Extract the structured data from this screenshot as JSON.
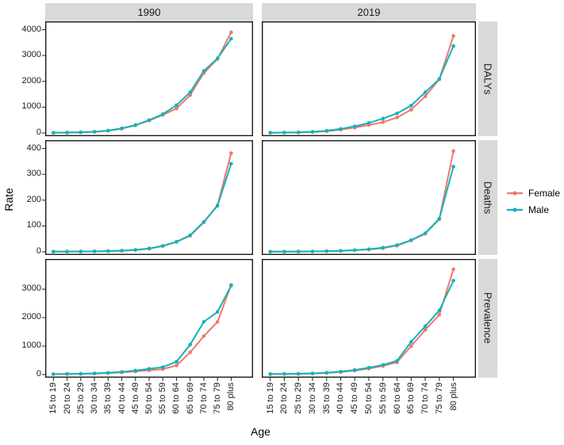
{
  "chart_data": {
    "type": "line",
    "title": "",
    "xlabel": "Age",
    "ylabel": "Rate",
    "facet_columns": [
      "1990",
      "2019"
    ],
    "facet_rows": [
      "DALYs",
      "Deaths",
      "Prevalence"
    ],
    "categories": [
      "15 to 19",
      "20 to 24",
      "25 to 29",
      "30 to 34",
      "35 to 39",
      "40 to 44",
      "45 to 49",
      "50 to 54",
      "55 to 59",
      "60 to 64",
      "65 to 69",
      "70 to 74",
      "75 to 79",
      "80 plus"
    ],
    "legend": {
      "position": "right",
      "entries": [
        {
          "name": "Female",
          "color": "#F0776D"
        },
        {
          "name": "Male",
          "color": "#13B3B9"
        }
      ]
    },
    "style": {
      "strip_background": "#D9D9D9",
      "panel_border": "#1A1A1A",
      "tick_color": "#333333",
      "panel_background": "#FFFFFF"
    },
    "panels": [
      {
        "col": "1990",
        "row": "DALYs",
        "yticks": [
          0,
          1000,
          2000,
          3000,
          4000
        ],
        "ylim": [
          0,
          4200
        ],
        "series": [
          {
            "name": "Female",
            "values": [
              10,
              15,
              25,
              45,
              90,
              170,
              300,
              480,
              700,
              950,
              1470,
              2320,
              2870,
              3900
            ]
          },
          {
            "name": "Male",
            "values": [
              12,
              18,
              30,
              50,
              95,
              180,
              310,
              500,
              730,
              1080,
              1580,
              2400,
              2890,
              3650
            ]
          }
        ]
      },
      {
        "col": "2019",
        "row": "DALYs",
        "yticks": [
          0,
          1000,
          2000,
          3000,
          4000
        ],
        "ylim": [
          0,
          4200
        ],
        "series": [
          {
            "name": "Female",
            "values": [
              10,
              14,
              22,
              38,
              70,
              130,
              210,
              310,
              420,
              600,
              900,
              1420,
              2080,
              3760
            ]
          },
          {
            "name": "Male",
            "values": [
              12,
              17,
              28,
              48,
              90,
              160,
              260,
              390,
              560,
              760,
              1060,
              1580,
              2090,
              3370
            ]
          }
        ]
      },
      {
        "col": "1990",
        "row": "Deaths",
        "yticks": [
          0,
          100,
          200,
          300,
          400
        ],
        "ylim": [
          0,
          420
        ],
        "series": [
          {
            "name": "Female",
            "values": [
              0.5,
              0.8,
              1.1,
              1.6,
              2.5,
              4,
              7,
              12,
              22,
              38,
              62,
              114,
              180,
              382
            ]
          },
          {
            "name": "Male",
            "values": [
              0.6,
              0.9,
              1.3,
              1.9,
              3,
              4.5,
              7.5,
              13,
              23,
              39,
              64,
              116,
              178,
              341
            ]
          }
        ]
      },
      {
        "col": "2019",
        "row": "Deaths",
        "yticks": [
          0,
          100,
          200,
          300,
          400
        ],
        "ylim": [
          0,
          420
        ],
        "series": [
          {
            "name": "Female",
            "values": [
              0.4,
              0.6,
              0.9,
              1.3,
              2,
              3.5,
              6,
              9,
              14,
              24,
              44,
              70,
              126,
              390
            ]
          },
          {
            "name": "Male",
            "values": [
              0.5,
              0.7,
              1.1,
              1.6,
              2.5,
              4,
              6.5,
              10,
              16,
              26,
              45,
              72,
              128,
              330
            ]
          }
        ]
      },
      {
        "col": "1990",
        "row": "Prevalence",
        "yticks": [
          0,
          1000,
          2000,
          3000
        ],
        "ylim": [
          0,
          3950
        ],
        "series": [
          {
            "name": "Female",
            "values": [
              15,
              20,
              25,
              35,
              50,
              75,
              110,
              150,
              190,
              320,
              780,
              1350,
              1850,
              3150
            ]
          },
          {
            "name": "Male",
            "values": [
              15,
              21,
              28,
              40,
              60,
              90,
              140,
              200,
              260,
              450,
              1050,
              1850,
              2200,
              3120
            ]
          }
        ]
      },
      {
        "col": "2019",
        "row": "Prevalence",
        "yticks": [
          0,
          1000,
          2000,
          3000
        ],
        "ylim": [
          0,
          3950
        ],
        "series": [
          {
            "name": "Female",
            "values": [
              15,
              20,
              26,
              36,
              55,
              85,
              140,
              210,
              300,
              430,
              1000,
              1570,
              2100,
              3700
            ]
          },
          {
            "name": "Male",
            "values": [
              16,
              22,
              29,
              42,
              65,
              100,
              160,
              240,
              340,
              480,
              1150,
              1700,
              2250,
              3300
            ]
          }
        ]
      }
    ]
  }
}
